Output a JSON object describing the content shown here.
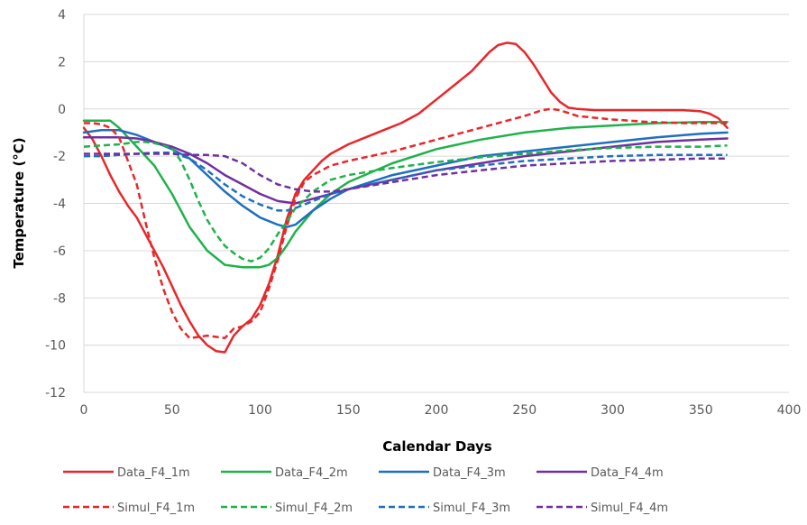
{
  "chart_data": {
    "type": "line",
    "title": "",
    "xlabel": "Calendar Days",
    "ylabel": "Temperature (°C)",
    "xlim": [
      0,
      400
    ],
    "ylim": [
      -12,
      4
    ],
    "xticks": [
      0,
      50,
      100,
      150,
      200,
      250,
      300,
      350,
      400
    ],
    "yticks": [
      -12,
      -10,
      -8,
      -6,
      -4,
      -2,
      0,
      2,
      4
    ],
    "grid": {
      "horizontal": true,
      "vertical": false
    },
    "legend_position": "bottom",
    "series": [
      {
        "name": "Data_F4_1m",
        "color": "#e8272a",
        "style": "solid",
        "x": [
          0,
          5,
          10,
          15,
          20,
          25,
          30,
          35,
          40,
          45,
          50,
          55,
          60,
          65,
          70,
          75,
          80,
          85,
          90,
          95,
          100,
          105,
          110,
          115,
          120,
          125,
          130,
          135,
          140,
          150,
          160,
          170,
          180,
          190,
          200,
          210,
          220,
          230,
          235,
          240,
          245,
          250,
          255,
          260,
          265,
          270,
          275,
          280,
          290,
          300,
          320,
          340,
          350,
          355,
          360,
          365
        ],
        "y": [
          -0.8,
          -1.3,
          -2.0,
          -2.8,
          -3.5,
          -4.1,
          -4.6,
          -5.3,
          -6.0,
          -6.7,
          -7.5,
          -8.3,
          -9.0,
          -9.6,
          -10.0,
          -10.25,
          -10.3,
          -9.6,
          -9.2,
          -8.9,
          -8.3,
          -7.4,
          -6.2,
          -4.7,
          -3.6,
          -3.0,
          -2.6,
          -2.2,
          -1.9,
          -1.5,
          -1.2,
          -0.9,
          -0.6,
          -0.2,
          0.4,
          1.0,
          1.6,
          2.4,
          2.7,
          2.8,
          2.75,
          2.4,
          1.9,
          1.3,
          0.7,
          0.3,
          0.05,
          0.0,
          -0.05,
          -0.05,
          -0.05,
          -0.05,
          -0.1,
          -0.2,
          -0.4,
          -0.8
        ]
      },
      {
        "name": "Data_F4_2m",
        "color": "#1fb24a",
        "style": "solid",
        "x": [
          0,
          5,
          10,
          15,
          20,
          25,
          30,
          40,
          50,
          60,
          70,
          80,
          90,
          100,
          105,
          110,
          115,
          120,
          130,
          140,
          150,
          175,
          200,
          225,
          250,
          275,
          300,
          325,
          350,
          365
        ],
        "y": [
          -0.5,
          -0.5,
          -0.5,
          -0.5,
          -0.8,
          -1.2,
          -1.6,
          -2.4,
          -3.6,
          -5.0,
          -6.0,
          -6.6,
          -6.7,
          -6.7,
          -6.6,
          -6.3,
          -5.8,
          -5.2,
          -4.3,
          -3.6,
          -3.1,
          -2.3,
          -1.7,
          -1.3,
          -1.0,
          -0.8,
          -0.7,
          -0.6,
          -0.55,
          -0.55
        ]
      },
      {
        "name": "Data_F4_3m",
        "color": "#1f6fbf",
        "style": "solid",
        "x": [
          0,
          10,
          20,
          30,
          40,
          50,
          60,
          70,
          80,
          90,
          100,
          110,
          115,
          120,
          130,
          140,
          150,
          175,
          200,
          225,
          250,
          275,
          300,
          325,
          350,
          365
        ],
        "y": [
          -1.0,
          -0.9,
          -0.9,
          -1.1,
          -1.4,
          -1.7,
          -2.1,
          -2.8,
          -3.5,
          -4.1,
          -4.6,
          -4.9,
          -5.0,
          -4.9,
          -4.3,
          -3.8,
          -3.4,
          -2.8,
          -2.4,
          -2.0,
          -1.8,
          -1.6,
          -1.4,
          -1.2,
          -1.05,
          -1.0
        ]
      },
      {
        "name": "Data_F4_4m",
        "color": "#7030a0",
        "style": "solid",
        "x": [
          0,
          10,
          20,
          30,
          40,
          50,
          60,
          70,
          80,
          90,
          100,
          110,
          120,
          130,
          140,
          150,
          175,
          200,
          225,
          250,
          275,
          300,
          325,
          350,
          365
        ],
        "y": [
          -1.2,
          -1.2,
          -1.2,
          -1.25,
          -1.4,
          -1.6,
          -1.9,
          -2.3,
          -2.8,
          -3.2,
          -3.6,
          -3.9,
          -4.0,
          -3.8,
          -3.6,
          -3.4,
          -3.0,
          -2.6,
          -2.3,
          -2.0,
          -1.8,
          -1.6,
          -1.4,
          -1.3,
          -1.25
        ]
      },
      {
        "name": "Simul_F4_1m",
        "color": "#e8272a",
        "style": "dashed",
        "x": [
          0,
          5,
          10,
          15,
          20,
          25,
          30,
          35,
          40,
          45,
          50,
          55,
          60,
          65,
          70,
          80,
          85,
          90,
          95,
          100,
          105,
          110,
          115,
          120,
          125,
          130,
          140,
          150,
          175,
          200,
          225,
          240,
          250,
          260,
          265,
          270,
          280,
          300,
          320,
          340,
          365
        ],
        "y": [
          -0.6,
          -0.6,
          -0.65,
          -0.8,
          -1.2,
          -2.2,
          -3.2,
          -4.8,
          -6.3,
          -7.6,
          -8.6,
          -9.3,
          -9.7,
          -9.65,
          -9.6,
          -9.7,
          -9.3,
          -9.2,
          -9.0,
          -8.6,
          -7.6,
          -6.4,
          -5.0,
          -3.8,
          -3.1,
          -2.8,
          -2.4,
          -2.2,
          -1.8,
          -1.3,
          -0.8,
          -0.5,
          -0.3,
          -0.05,
          0.0,
          -0.05,
          -0.3,
          -0.45,
          -0.55,
          -0.6,
          -0.6
        ]
      },
      {
        "name": "Simul_F4_2m",
        "color": "#1fb24a",
        "style": "dashed",
        "x": [
          0,
          10,
          20,
          25,
          30,
          35,
          40,
          45,
          50,
          55,
          60,
          65,
          70,
          75,
          80,
          85,
          90,
          95,
          100,
          105,
          110,
          115,
          120,
          130,
          140,
          150,
          175,
          200,
          225,
          250,
          275,
          300,
          325,
          350,
          365
        ],
        "y": [
          -1.6,
          -1.55,
          -1.5,
          -1.45,
          -1.4,
          -1.4,
          -1.45,
          -1.55,
          -1.65,
          -2.2,
          -3.0,
          -3.9,
          -4.7,
          -5.3,
          -5.8,
          -6.1,
          -6.35,
          -6.45,
          -6.3,
          -5.9,
          -5.3,
          -4.8,
          -4.2,
          -3.5,
          -3.0,
          -2.8,
          -2.5,
          -2.25,
          -2.05,
          -1.9,
          -1.75,
          -1.65,
          -1.6,
          -1.6,
          -1.55
        ]
      },
      {
        "name": "Simul_F4_3m",
        "color": "#1f6fbf",
        "style": "dashed",
        "x": [
          0,
          10,
          20,
          30,
          40,
          50,
          60,
          70,
          80,
          90,
          100,
          110,
          115,
          120,
          130,
          140,
          150,
          175,
          200,
          225,
          250,
          275,
          300,
          325,
          350,
          365
        ],
        "y": [
          -2.0,
          -2.0,
          -1.95,
          -1.9,
          -1.85,
          -1.85,
          -2.1,
          -2.6,
          -3.2,
          -3.7,
          -4.05,
          -4.3,
          -4.3,
          -4.2,
          -3.9,
          -3.6,
          -3.4,
          -3.0,
          -2.6,
          -2.4,
          -2.2,
          -2.1,
          -2.0,
          -1.95,
          -1.95,
          -1.95
        ]
      },
      {
        "name": "Simul_F4_4m",
        "color": "#7030a0",
        "style": "dashed",
        "x": [
          0,
          10,
          20,
          30,
          40,
          50,
          60,
          70,
          80,
          90,
          100,
          110,
          120,
          130,
          140,
          150,
          175,
          200,
          225,
          250,
          275,
          300,
          325,
          350,
          365
        ],
        "y": [
          -1.9,
          -1.9,
          -1.9,
          -1.9,
          -1.9,
          -1.9,
          -1.95,
          -1.95,
          -2.0,
          -2.3,
          -2.8,
          -3.2,
          -3.4,
          -3.5,
          -3.5,
          -3.4,
          -3.1,
          -2.8,
          -2.6,
          -2.4,
          -2.3,
          -2.2,
          -2.15,
          -2.1,
          -2.1
        ]
      }
    ]
  }
}
